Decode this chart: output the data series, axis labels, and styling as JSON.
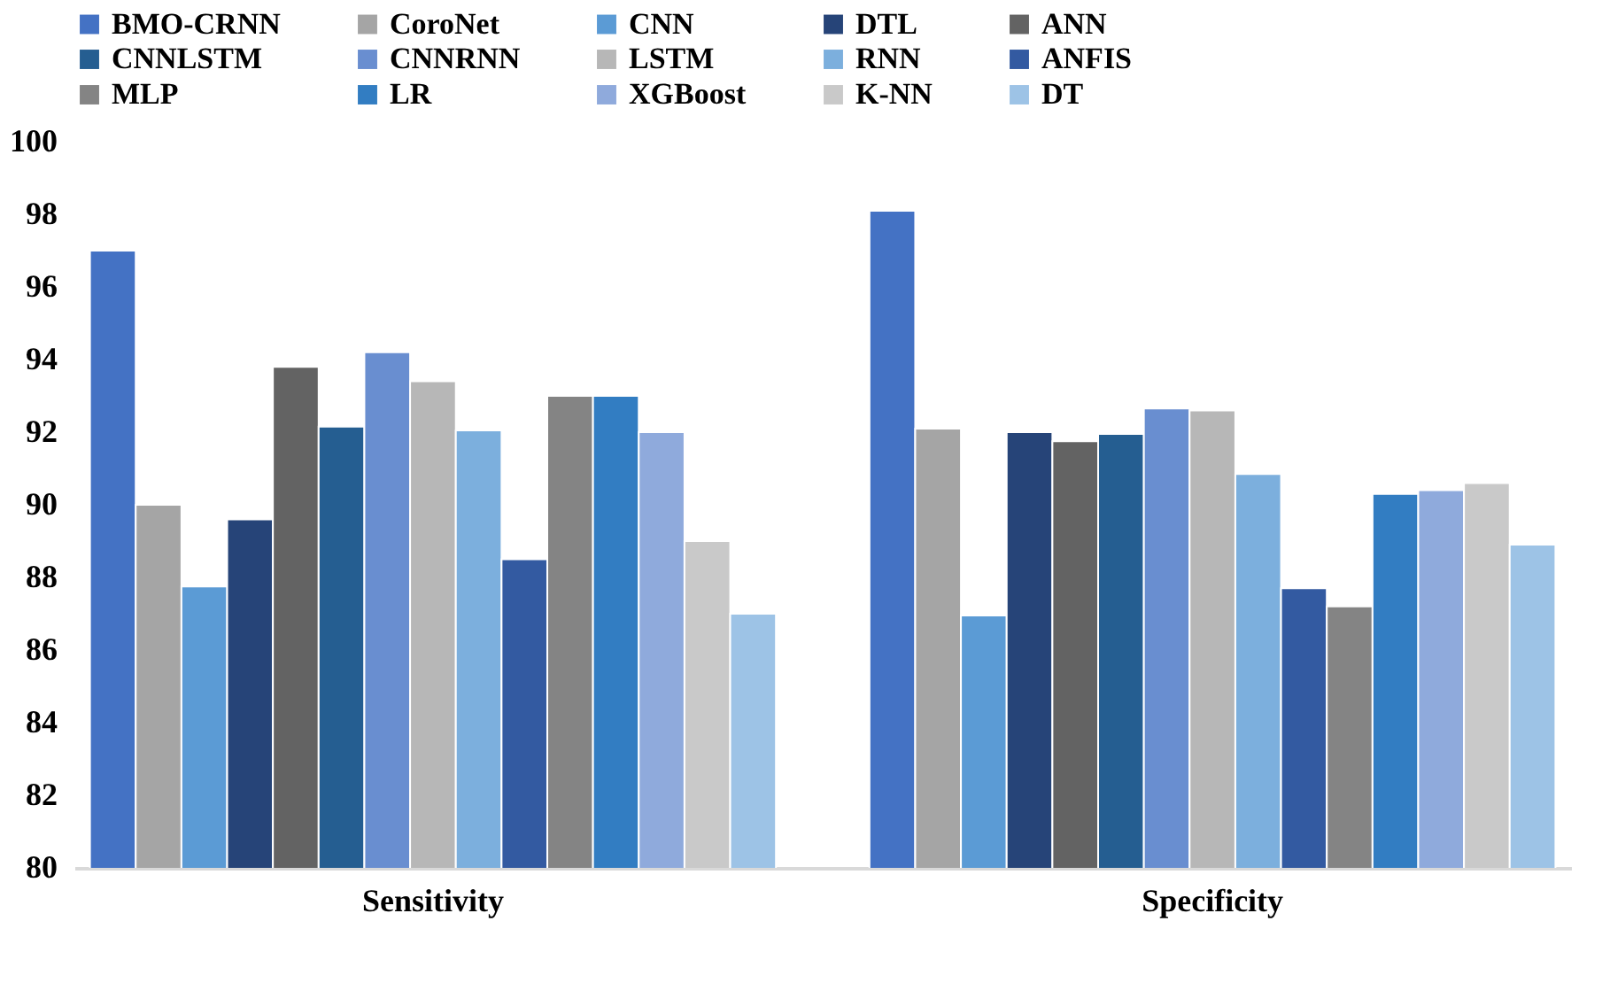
{
  "chart_data": {
    "type": "bar",
    "categories": [
      "Sensitivity",
      "Specificity"
    ],
    "series": [
      {
        "name": "BMO-CRNN",
        "color": "#4472c4",
        "values": [
          97.0,
          98.1
        ]
      },
      {
        "name": "CoroNet",
        "color": "#a5a5a5",
        "values": [
          90.0,
          92.1
        ]
      },
      {
        "name": "CNN",
        "color": "#5b9bd5",
        "values": [
          87.75,
          86.95
        ]
      },
      {
        "name": "DTL",
        "color": "#264478",
        "values": [
          89.6,
          92.0
        ]
      },
      {
        "name": "ANN",
        "color": "#636363",
        "values": [
          93.8,
          91.75
        ]
      },
      {
        "name": "CNNLSTM",
        "color": "#255e91",
        "values": [
          92.15,
          91.95
        ]
      },
      {
        "name": "CNNRNN",
        "color": "#698ed0",
        "values": [
          94.2,
          92.65
        ]
      },
      {
        "name": "LSTM",
        "color": "#b7b7b7",
        "values": [
          93.4,
          92.6
        ]
      },
      {
        "name": "RNN",
        "color": "#7cafdd",
        "values": [
          92.05,
          90.85
        ]
      },
      {
        "name": "ANFIS",
        "color": "#335aa1",
        "values": [
          88.5,
          87.7
        ]
      },
      {
        "name": "MLP",
        "color": "#848484",
        "values": [
          93.0,
          87.2
        ]
      },
      {
        "name": "LR",
        "color": "#327dc2",
        "values": [
          93.0,
          90.3
        ]
      },
      {
        "name": "XGBoost",
        "color": "#8faadc",
        "values": [
          92.0,
          90.4
        ]
      },
      {
        "name": "K-NN",
        "color": "#c9c9c9",
        "values": [
          89.0,
          90.6
        ]
      },
      {
        "name": "DT",
        "color": "#9dc3e6",
        "values": [
          87.0,
          88.9
        ]
      }
    ],
    "ylim": [
      80,
      100
    ],
    "yticks": [
      80,
      82,
      84,
      86,
      88,
      90,
      92,
      94,
      96,
      98,
      100
    ],
    "grid": false,
    "legend": "top"
  }
}
